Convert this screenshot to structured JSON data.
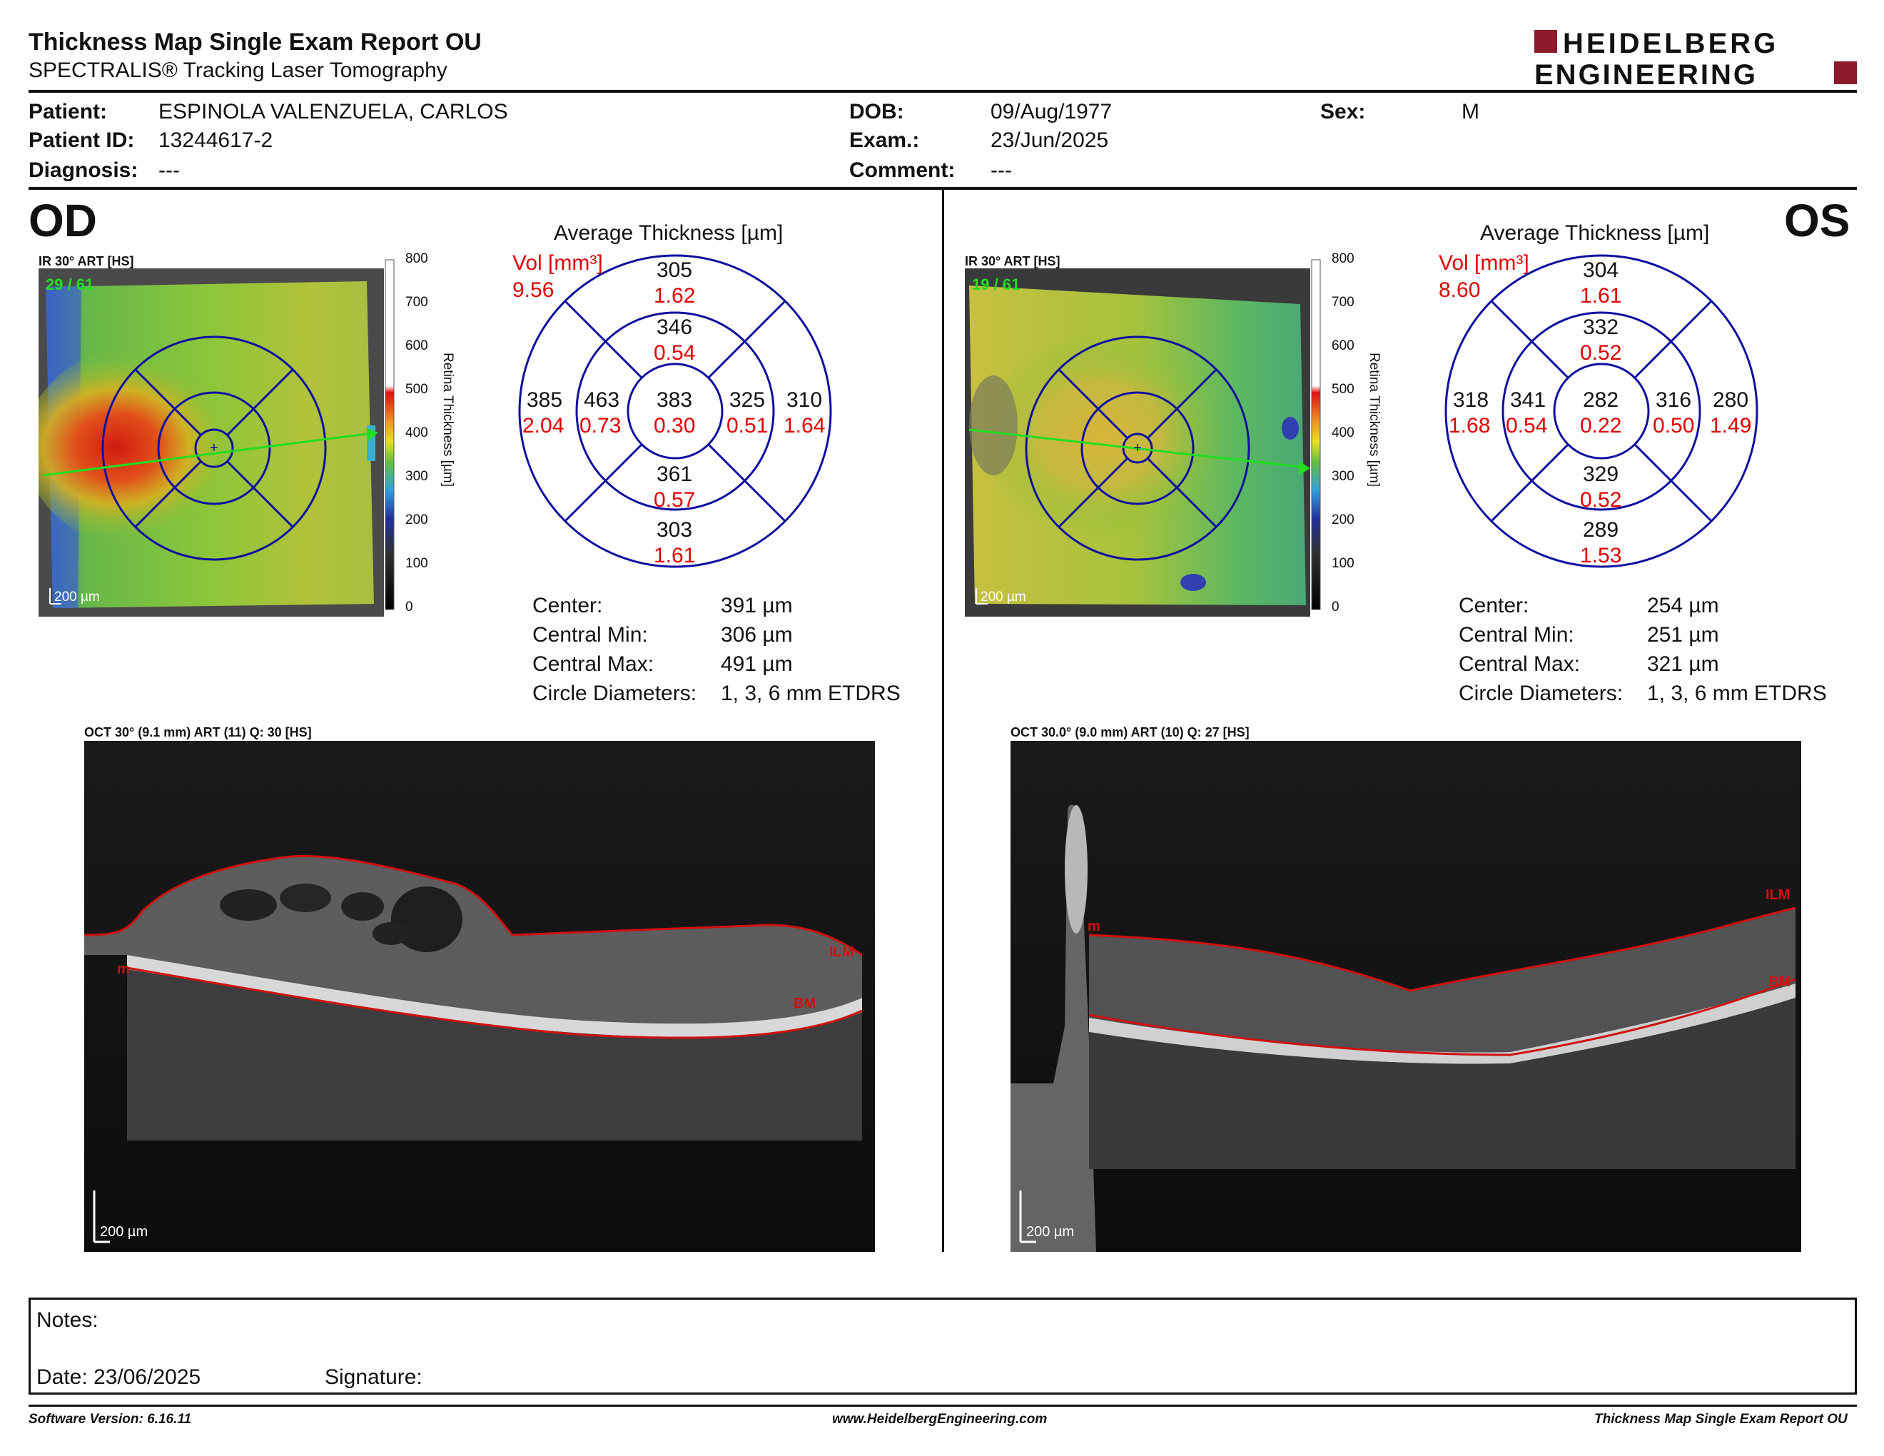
{
  "report": {
    "title": "Thickness Map Single Exam Report OU",
    "subtitle": "SPECTRALIS® Tracking Laser Tomography",
    "logo_line1": "HEIDELBERG",
    "logo_line2": "ENGINEERING"
  },
  "patient": {
    "patient_label": "Patient:",
    "patient_value": "ESPINOLA VALENZUELA, CARLOS",
    "id_label": "Patient ID:",
    "id_value": "13244617-2",
    "diagnosis_label": "Diagnosis:",
    "diagnosis_value": "---",
    "dob_label": "DOB:",
    "dob_value": "09/Aug/1977",
    "exam_label": "Exam.:",
    "exam_value": "23/Jun/2025",
    "comment_label": "Comment:",
    "comment_value": "---",
    "sex_label": "Sex:",
    "sex_value": "M"
  },
  "od": {
    "eye_label": "OD",
    "ir_caption": "IR 30° ART [HS]",
    "ir_overlay": "29 / 61",
    "scale": "200 µm",
    "avg_title": "Average Thickness [µm]",
    "vol_label": "Vol [mm³]",
    "vol_value": "9.56",
    "grid": {
      "superior_outer": {
        "t": "305",
        "v": "1.62"
      },
      "superior_inner": {
        "t": "346",
        "v": "0.54"
      },
      "temporal_outer": {
        "t": "385",
        "v": "2.04"
      },
      "temporal_inner": {
        "t": "463",
        "v": "0.73"
      },
      "center": {
        "t": "383",
        "v": "0.30"
      },
      "nasal_inner": {
        "t": "325",
        "v": "0.51"
      },
      "nasal_outer": {
        "t": "310",
        "v": "1.64"
      },
      "inferior_inner": {
        "t": "361",
        "v": "0.57"
      },
      "inferior_outer": {
        "t": "303",
        "v": "1.61"
      }
    },
    "stats": [
      {
        "label": "Center:",
        "value": "391 µm"
      },
      {
        "label": "Central Min:",
        "value": "306 µm"
      },
      {
        "label": "Central Max:",
        "value": "491 µm"
      },
      {
        "label": "Circle Diameters:",
        "value": "1, 3, 6 mm ETDRS"
      }
    ],
    "oct_caption": "OCT 30° (9.1 mm) ART (11) Q: 30 [HS]",
    "ilm": "ILM",
    "bm": "BM",
    "m": "m"
  },
  "os": {
    "eye_label": "OS",
    "ir_caption": "IR 30° ART [HS]",
    "ir_overlay": "19 / 61",
    "scale": "200 µm",
    "avg_title": "Average Thickness [µm]",
    "vol_label": "Vol [mm³]",
    "vol_value": "8.60",
    "grid": {
      "superior_outer": {
        "t": "304",
        "v": "1.61"
      },
      "superior_inner": {
        "t": "332",
        "v": "0.52"
      },
      "temporal_outer": {
        "t": "318",
        "v": "1.68"
      },
      "temporal_inner": {
        "t": "341",
        "v": "0.54"
      },
      "center": {
        "t": "282",
        "v": "0.22"
      },
      "nasal_inner": {
        "t": "316",
        "v": "0.50"
      },
      "nasal_outer": {
        "t": "280",
        "v": "1.49"
      },
      "inferior_inner": {
        "t": "329",
        "v": "0.52"
      },
      "inferior_outer": {
        "t": "289",
        "v": "1.53"
      }
    },
    "stats": [
      {
        "label": "Center:",
        "value": "254 µm"
      },
      {
        "label": "Central Min:",
        "value": "251 µm"
      },
      {
        "label": "Central Max:",
        "value": "321 µm"
      },
      {
        "label": "Circle Diameters:",
        "value": "1, 3, 6 mm ETDRS"
      }
    ],
    "oct_caption": "OCT 30.0° (9.0 mm) ART (10) Q: 27 [HS]",
    "ilm": "ILM",
    "bm": "BM",
    "m": "m"
  },
  "colorbar": {
    "ticks": [
      "800",
      "700",
      "600",
      "500",
      "400",
      "300",
      "200",
      "100",
      "0"
    ],
    "label": "Retina Thickness [µm]"
  },
  "notes": {
    "notes_label": "Notes:",
    "date_label": "Date: 23/06/2025",
    "signature_label": "Signature:"
  },
  "footer": {
    "software": "Software Version: 6.16.11",
    "website": "www.HeidelbergEngineering.com",
    "report": "Thickness Map Single Exam Report OU"
  },
  "colors": {
    "brand": "#8b1a2b",
    "grid_line": "#1010a0",
    "volume_red": "#e00000",
    "seg_red": "#d01010"
  }
}
